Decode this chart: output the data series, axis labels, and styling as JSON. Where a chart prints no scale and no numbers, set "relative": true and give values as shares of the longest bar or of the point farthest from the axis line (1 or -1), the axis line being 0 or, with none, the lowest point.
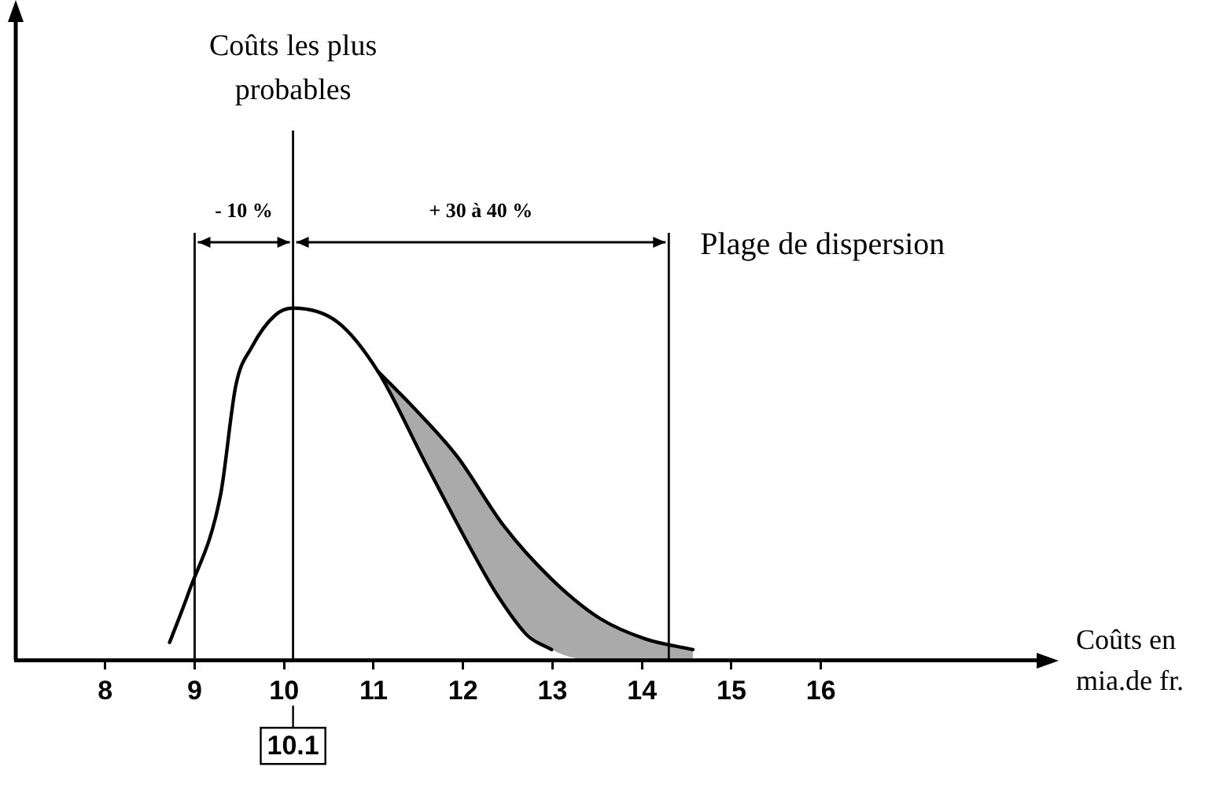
{
  "chart_data": {
    "type": "line",
    "relative": true,
    "xlabel": "Coûts en mia.de fr.",
    "xlim": [
      7,
      18.5
    ],
    "xticks": [
      8,
      9,
      10,
      11,
      12,
      13,
      14,
      15,
      16
    ],
    "grid": false,
    "legend": false,
    "marker": "none",
    "line_style": "solid",
    "series": [
      {
        "color": "#000000",
        "x": [
          8.72,
          8.93,
          9.29,
          9.46,
          9.64,
          9.9,
          10.1,
          10.6,
          11.05,
          11.58,
          12.1,
          12.37,
          12.72,
          12.99
        ],
        "values": [
          0.05,
          0.19,
          0.47,
          0.78,
          0.89,
          0.98,
          1,
          0.96,
          0.82,
          0.56,
          0.31,
          0.19,
          0.07,
          0.03
        ]
      },
      {
        "color": "#000000",
        "lower": [
          0.82,
          0.65,
          0.39,
          0.15,
          0.03,
          0,
          0,
          0
        ],
        "upper": [
          0.82,
          0.73,
          0.58,
          0.38,
          0.23,
          0.12,
          0.06,
          0.03
        ],
        "x": [
          11.05,
          11.4,
          11.93,
          12.46,
          12.99,
          13.52,
          14.04,
          14.57
        ],
        "values": [
          0.82,
          0.73,
          0.58,
          0.38,
          0.23,
          0.12,
          0.06,
          0.03
        ]
      }
    ],
    "ref_lines": [
      {
        "axis": "x",
        "value": 9
      },
      {
        "axis": "x",
        "value": 10.1,
        "label": "Coûts les plus probables"
      },
      {
        "axis": "x",
        "value": 14.3
      }
    ],
    "annotations": [
      "- 10 %",
      "+ 30 à 40 %",
      "Plage de dispersion",
      {
        "text": "10.1",
        "x": 10.1,
        "y": 0
      }
    ]
  }
}
